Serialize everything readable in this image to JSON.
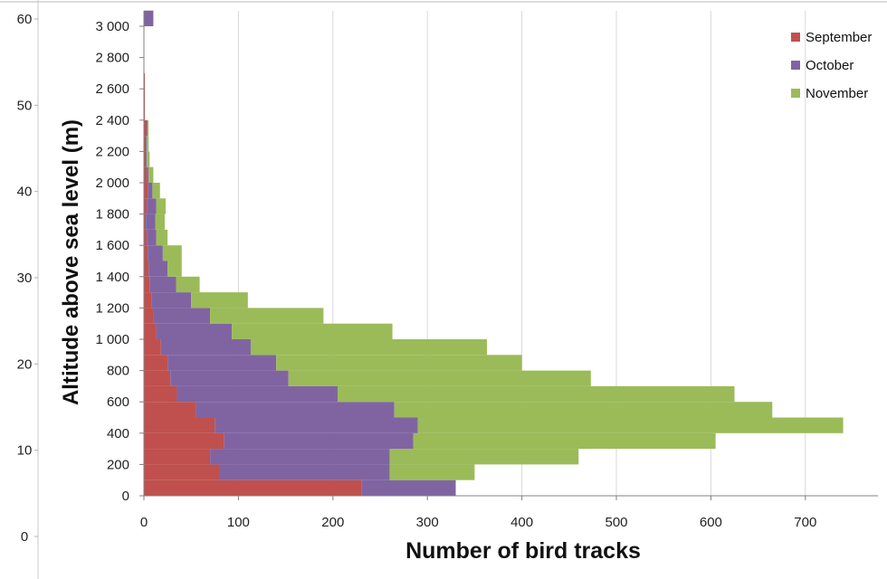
{
  "chart_data": {
    "type": "bar",
    "orientation": "horizontal",
    "stacked": true,
    "title": "",
    "xlabel": "Number of bird tracks",
    "ylabel": "Altitude above sea level (m)",
    "xlim": [
      0,
      780
    ],
    "ylim": [
      0,
      3040
    ],
    "x_ticks": [
      "0",
      "100",
      "200",
      "300",
      "400",
      "500",
      "600",
      "700"
    ],
    "x_tick_values": [
      0,
      100,
      200,
      300,
      400,
      500,
      600,
      700
    ],
    "y_ticks": [
      "0",
      "200",
      "400",
      "600",
      "800",
      "1 000",
      "1 200",
      "1 400",
      "1 600",
      "1 800",
      "2 000",
      "2 200",
      "2 400",
      "2 600",
      "2 800",
      "3 000"
    ],
    "y_tick_values": [
      0,
      200,
      400,
      600,
      800,
      1000,
      1200,
      1400,
      1600,
      1800,
      2000,
      2200,
      2400,
      2600,
      2800,
      3000
    ],
    "outer_axis_ticks": [
      "0",
      "10",
      "20",
      "30",
      "40",
      "50",
      "60"
    ],
    "outer_axis_values": [
      0,
      10,
      20,
      30,
      40,
      50,
      60
    ],
    "grid": "vertical",
    "legend": "top-right",
    "colors": {
      "September": "#c0504d",
      "October": "#8064a2",
      "November": "#9bbb59"
    },
    "altitude_bins": [
      0,
      100,
      200,
      300,
      400,
      500,
      600,
      700,
      800,
      900,
      1000,
      1100,
      1200,
      1300,
      1400,
      1500,
      1600,
      1700,
      1800,
      1900,
      2000,
      2100,
      2200,
      2300,
      2400,
      2500,
      2600,
      2700,
      2800,
      2900,
      3000
    ],
    "series": [
      {
        "name": "September",
        "values": [
          230,
          80,
          70,
          85,
          75,
          55,
          35,
          28,
          25,
          18,
          13,
          10,
          8,
          6,
          5,
          4,
          3,
          2,
          3,
          4,
          3,
          2,
          2,
          3,
          1,
          1,
          1,
          0,
          0,
          0,
          0
        ]
      },
      {
        "name": "October",
        "values": [
          100,
          180,
          190,
          200,
          215,
          210,
          170,
          125,
          115,
          95,
          80,
          60,
          42,
          28,
          20,
          16,
          10,
          10,
          10,
          5,
          2,
          1,
          1,
          1,
          0,
          0,
          0,
          0,
          0,
          0,
          10
        ]
      },
      {
        "name": "November",
        "values": [
          0,
          90,
          200,
          320,
          450,
          400,
          420,
          320,
          260,
          250,
          170,
          120,
          60,
          25,
          15,
          20,
          12,
          10,
          10,
          8,
          5,
          3,
          2,
          1,
          0,
          0,
          0,
          0,
          0,
          0,
          0
        ]
      }
    ]
  }
}
